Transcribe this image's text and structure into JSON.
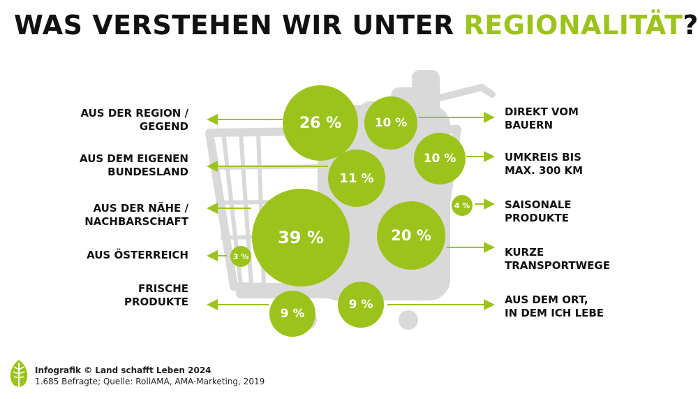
{
  "title": {
    "main": "WAS VERSTEHEN WIR UNTER ",
    "accent": "REGIONALITÄT",
    "suffix": "?"
  },
  "colors": {
    "accent": "#9cc31b",
    "cart": "#d9d9d9",
    "text": "#111111"
  },
  "answers": [
    {
      "label": "AUS DER REGION / GEGEND",
      "line1": "AUS DER REGION /",
      "line2": "GEGEND",
      "value": "26 %"
    },
    {
      "label": "DIREKT VOM BAUERN",
      "line1": "DIREKT VOM",
      "line2": "BAUERN",
      "value": "10 %"
    },
    {
      "label": "AUS DEM EIGENEN BUNDESLAND",
      "line1": "AUS DEM EIGENEN",
      "line2": "BUNDESLAND",
      "value": "11 %"
    },
    {
      "label": "UMKREIS BIS MAX. 300 KM",
      "line1": "UMKREIS BIS",
      "line2": "MAX. 300 KM",
      "value": "10 %"
    },
    {
      "label": "SAISONALE PRODUKTE",
      "line1": "SAISONALE",
      "line2": "PRODUKTE",
      "value": "4 %"
    },
    {
      "label": "AUS DER NÄHE / NACHBARSCHAFT",
      "line1": "AUS DER NÄHE /",
      "line2": "NACHBARSCHAFT",
      "value": "39 %"
    },
    {
      "label": "KURZE TRANSPORTWEGE",
      "line1": "KURZE",
      "line2": "TRANSPORTWEGE",
      "value": "20 %"
    },
    {
      "label": "AUS ÖSTERREICH",
      "line1": "AUS ÖSTERREICH",
      "line2": "",
      "value": "3 %"
    },
    {
      "label": "FRISCHE PRODUKTE",
      "line1": "FRISCHE",
      "line2": "PRODUKTE",
      "value": "9 %"
    },
    {
      "label": "AUS DEM ORT, IN DEM ICH LEBE",
      "line1": "AUS DEM ORT,",
      "line2": "IN DEM ICH LEBE",
      "value": "9 %"
    }
  ],
  "footer": {
    "line1_bold": "Infografik © Land schafft Leben 2024",
    "line2": "1.685 Befragte; Quelle: RollAMA, AMA-Marketing, 2019"
  },
  "icons": {
    "logo": "leaf-logo-icon",
    "cart": "shopping-cart-icon"
  }
}
